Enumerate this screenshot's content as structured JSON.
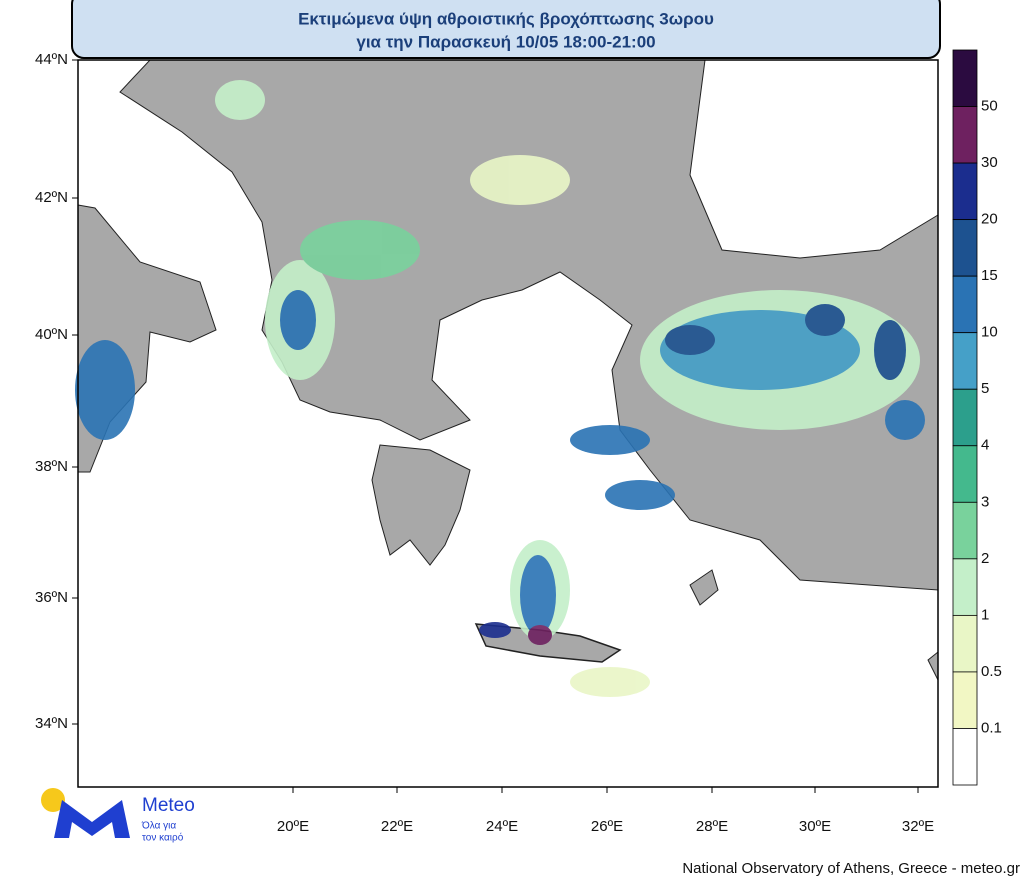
{
  "title": {
    "line1": "Εκτιμώμενα ύψη αθροιστικής βροχόπτωσης 3ωρου",
    "line2": "για την Παρασκευή 10/05 18:00-21:00"
  },
  "map": {
    "lat_labels": [
      "44ºN",
      "42ºN",
      "40ºN",
      "38ºN",
      "36ºN",
      "34ºN"
    ],
    "lon_labels": [
      "20ºE",
      "22ºE",
      "24ºE",
      "26ºE",
      "28ºE",
      "30ºE",
      "32ºE"
    ]
  },
  "legend": {
    "labels": [
      "50",
      "30",
      "20",
      "15",
      "10",
      "5",
      "4",
      "3",
      "2",
      "1",
      "0.5",
      "0.1"
    ],
    "colors": [
      "#2b0b40",
      "#6e2160",
      "#1b2d8e",
      "#1d5290",
      "#2a73b4",
      "#45a0c8",
      "#2c9f8c",
      "#44b98d",
      "#79d29c",
      "#c4efc9",
      "#e9f6c6",
      "#f2f7c4",
      "#ffffff"
    ]
  },
  "logo": {
    "name": "Meteo",
    "tagline_1": "Όλα για",
    "tagline_2": "τον καιρό"
  },
  "footer": "National Observatory of Athens, Greece - meteo.gr"
}
